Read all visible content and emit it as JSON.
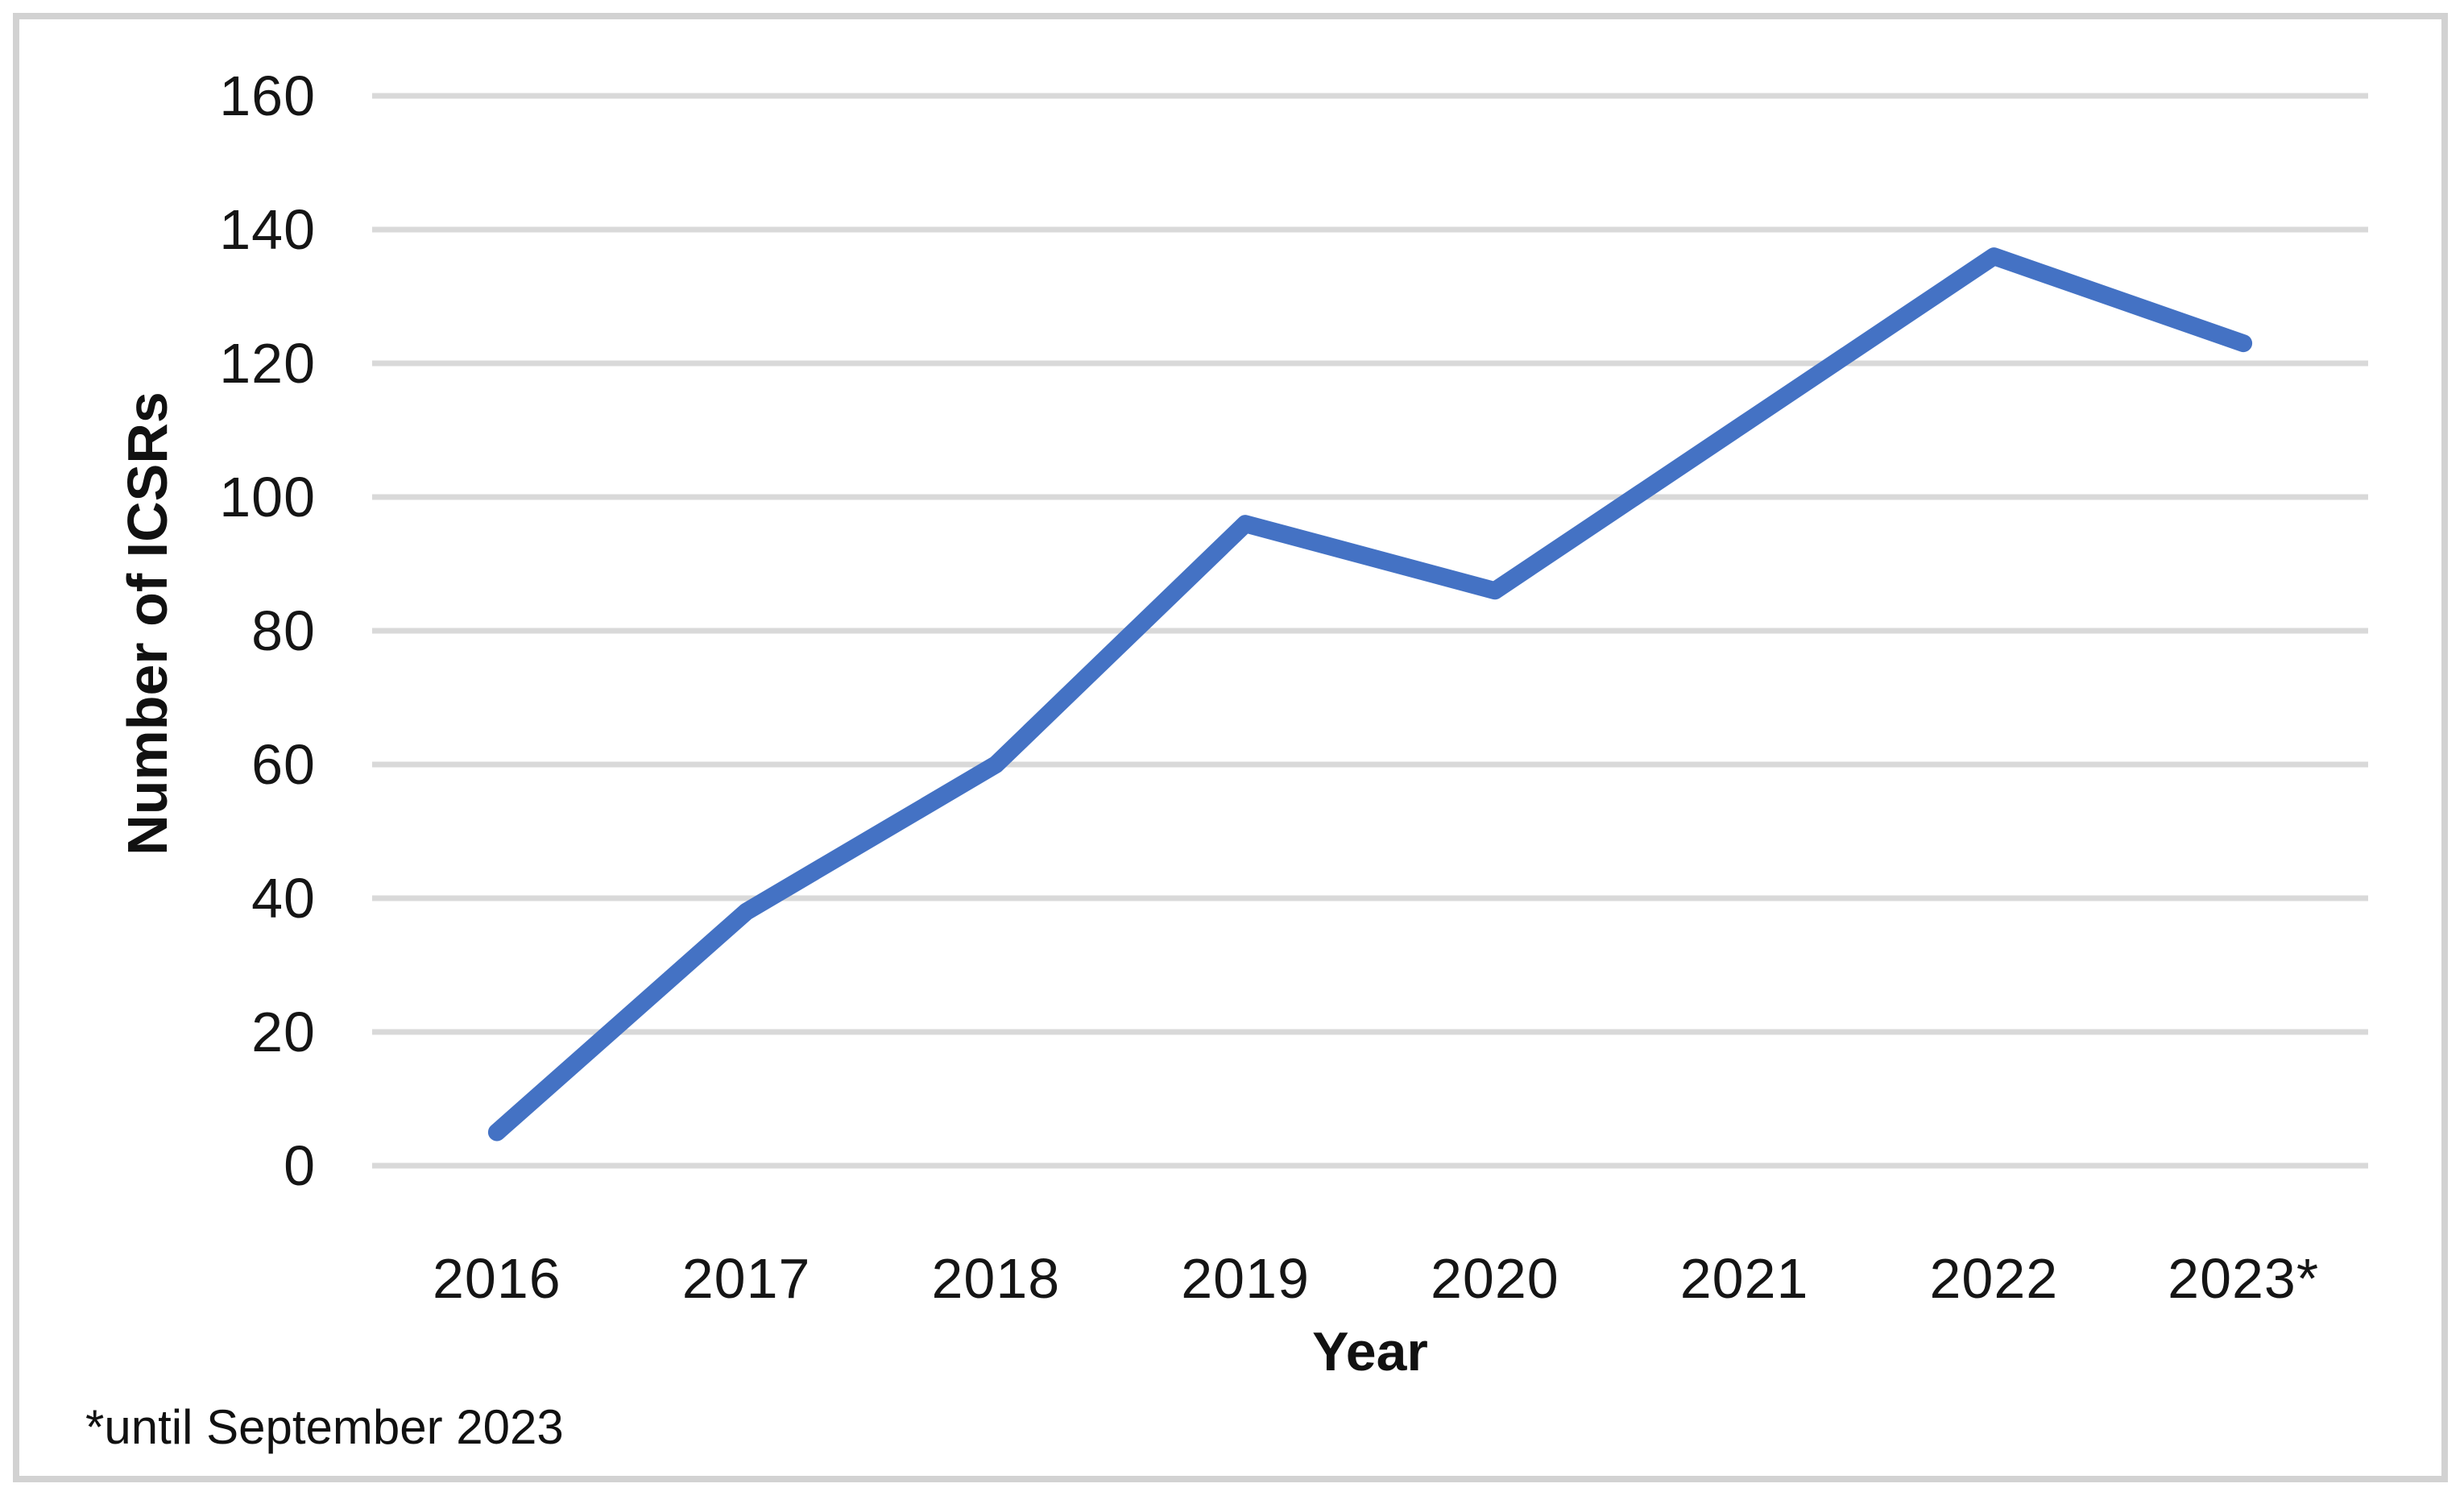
{
  "chart_data": {
    "type": "line",
    "categories": [
      "2016",
      "2017",
      "2018",
      "2019",
      "2020",
      "2021",
      "2022",
      "2023*"
    ],
    "values": [
      5,
      38,
      60,
      96,
      86,
      111,
      136,
      123
    ],
    "series": [
      {
        "name": "Number of ICSRs per year",
        "values": [
          5,
          38,
          60,
          96,
          86,
          111,
          136,
          123
        ]
      }
    ],
    "title": "",
    "xlabel": "Year",
    "ylabel": "Number of ICSRs",
    "ylim": [
      0,
      160
    ],
    "yticks": [
      0,
      20,
      40,
      60,
      80,
      100,
      120,
      140,
      160
    ],
    "grid": true,
    "legend_position": "none",
    "footnote": "*until September 2023",
    "colors": {
      "line": "#4472C4",
      "gridline": "#D9D9D9",
      "frame_border": "#D2D2D2",
      "text": "#111111",
      "background": "#FFFFFF"
    }
  }
}
